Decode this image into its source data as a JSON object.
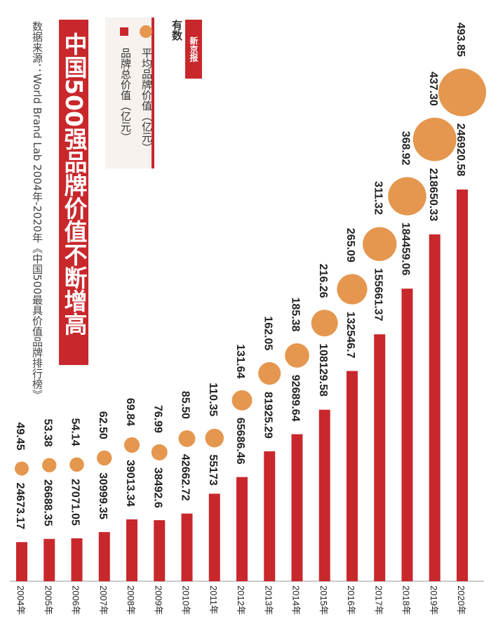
{
  "title": "中国500强品牌价值不断增高",
  "source": "数据来源：World Brand Lab 2004年-2020年《中国500最具价值品牌排行榜》",
  "legend": {
    "avg_label": "平均品牌价值（亿元）",
    "total_label": "品牌总价值（亿元）"
  },
  "logo": {
    "stamp": "新京报",
    "text": "有数"
  },
  "colors": {
    "bar": "#c8282c",
    "bubble": "#e5974f",
    "title_bg": "#c8282c",
    "text": "#222222"
  },
  "chart_data": {
    "type": "bar",
    "categories": [
      "2004年",
      "2005年",
      "2006年",
      "2007年",
      "2008年",
      "2009年",
      "2010年",
      "2011年",
      "2012年",
      "2013年",
      "2014年",
      "2015年",
      "2016年",
      "2017年",
      "2018年",
      "2019年",
      "2020年"
    ],
    "series": [
      {
        "name": "品牌总价值（亿元）",
        "kind": "bar",
        "values": [
          24673.17,
          26688.35,
          27071.05,
          30999.35,
          39013.34,
          38492.6,
          42662.72,
          55173,
          65686.46,
          81925.29,
          92689.64,
          108129.58,
          132546.7,
          155661.37,
          184459.06,
          218650.33,
          246920.58
        ],
        "labels": [
          "24673.17",
          "26688.35",
          "27071.05",
          "30999.35",
          "39013.34",
          "38492.6",
          "42662.72",
          "55173",
          "65686.46",
          "81925.29",
          "92689.64",
          "108129.58",
          "132546.7",
          "155661.37",
          "184459.06",
          "218650.33",
          "246920.58"
        ]
      },
      {
        "name": "平均品牌价值（亿元）",
        "kind": "bubble",
        "values": [
          49.45,
          53.38,
          54.14,
          62.5,
          69.84,
          76.99,
          85.5,
          110.35,
          131.64,
          162.05,
          185.38,
          216.26,
          265.09,
          311.32,
          368.92,
          437.3,
          493.85
        ],
        "labels": [
          "49.45",
          "53.38",
          "54.14",
          "62.50",
          "69.84",
          "76.99",
          "85.50",
          "110.35",
          "131.64",
          "162.05",
          "185.38",
          "216.26",
          "265.09",
          "311.32",
          "368.92",
          "437.30",
          "493.85"
        ]
      }
    ],
    "ylim": [
      0,
      250000
    ]
  }
}
